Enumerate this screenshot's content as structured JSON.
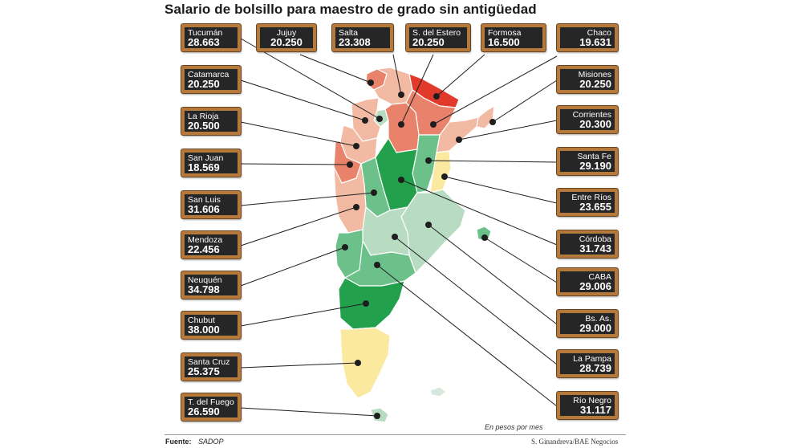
{
  "title": "Salario de bolsillo para maestro de grado sin antigüedad",
  "note": "En pesos por mes",
  "source_label": "Fuente:",
  "source_value": "SADOP",
  "credit": "S. Ginandreva/BAE Negocios",
  "colors": {
    "board_bg": "#262626",
    "board_frame": "#b5793c",
    "dark_green": "#22a04b",
    "mid_green": "#6cc08a",
    "light_green": "#b8dcc2",
    "pale_salmon": "#f2b9a3",
    "salmon": "#e8826a",
    "red": "#e23a2a",
    "yellow": "#fbe9a0"
  },
  "provinces": {
    "tucuman": {
      "name": "Tucumán",
      "value": "28.663"
    },
    "jujuy": {
      "name": "Jujuy",
      "value": "20.250"
    },
    "salta": {
      "name": "Salta",
      "value": "23.308"
    },
    "sdelestero": {
      "name": "S. del Estero",
      "value": "20.250"
    },
    "formosa": {
      "name": "Formosa",
      "value": "16.500"
    },
    "chaco": {
      "name": "Chaco",
      "value": "19.631"
    },
    "catamarca": {
      "name": "Catamarca",
      "value": "20.250"
    },
    "misiones": {
      "name": "Misiones",
      "value": "20.250"
    },
    "larioja": {
      "name": "La Rioja",
      "value": "20.500"
    },
    "corrientes": {
      "name": "Corrientes",
      "value": "20.300"
    },
    "sanjuan": {
      "name": "San Juan",
      "value": "18.569"
    },
    "santafe": {
      "name": "Santa Fe",
      "value": "29.190"
    },
    "sanluis": {
      "name": "San Luis",
      "value": "31.606"
    },
    "entrerios": {
      "name": "Entre Ríos",
      "value": "23.655"
    },
    "mendoza": {
      "name": "Mendoza",
      "value": "22.456"
    },
    "cordoba": {
      "name": "Córdoba",
      "value": "31.743"
    },
    "neuquen": {
      "name": "Neuquén",
      "value": "34.798"
    },
    "caba": {
      "name": "CABA",
      "value": "29.006"
    },
    "chubut": {
      "name": "Chubut",
      "value": "38.000"
    },
    "bsas": {
      "name": "Bs. As.",
      "value": "29.000"
    },
    "santacruz": {
      "name": "Santa Cruz",
      "value": "25.375"
    },
    "lapampa": {
      "name": "La Pampa",
      "value": "28.739"
    },
    "tdelfuego": {
      "name": "T. del Fuego",
      "value": "26.590"
    },
    "rionegro": {
      "name": "Río Negro",
      "value": "31.117"
    }
  }
}
